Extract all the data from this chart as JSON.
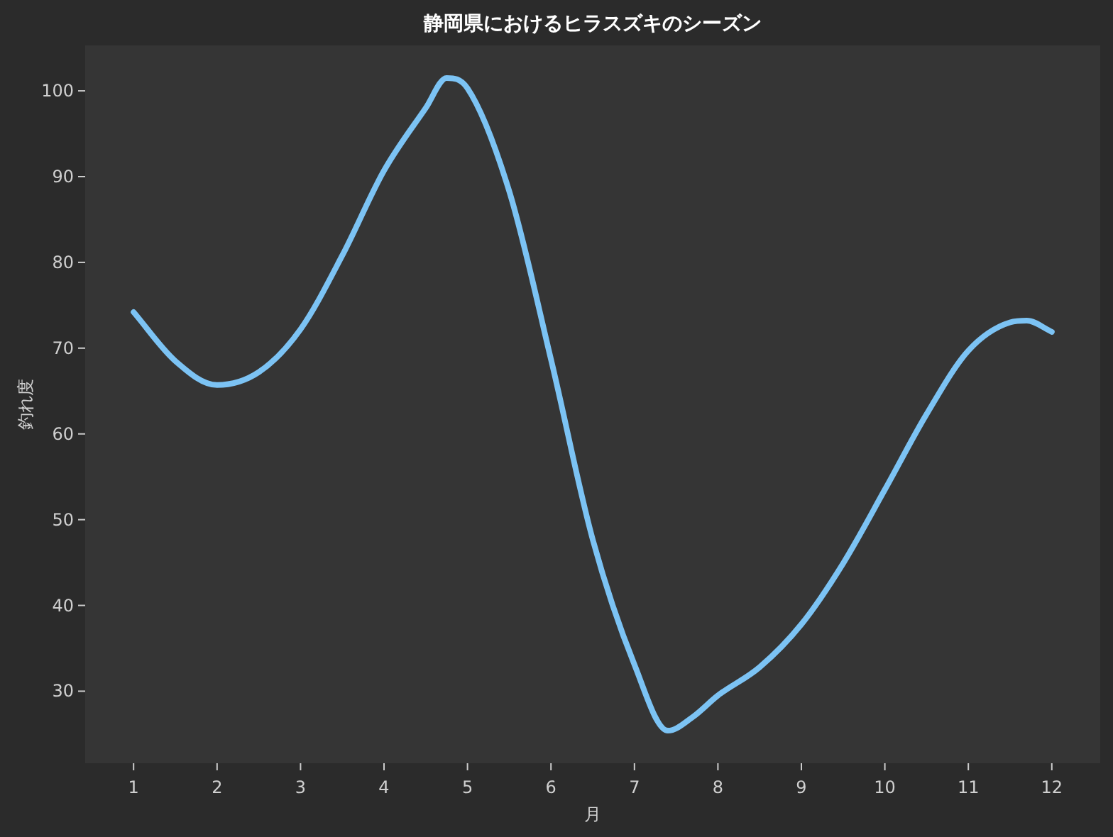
{
  "chart_data": {
    "type": "line",
    "title": "静岡県におけるヒラスズキのシーズン",
    "xlabel": "月",
    "ylabel": "釣れ度",
    "x": [
      1,
      1.5,
      2,
      2.5,
      3,
      3.5,
      4,
      4.5,
      4.75,
      5,
      5.5,
      6,
      6.5,
      7,
      7.4,
      7.7,
      8,
      8.5,
      9,
      9.5,
      10,
      10.5,
      11,
      11.5,
      11.7,
      12
    ],
    "values": [
      74.2,
      68.5,
      65.7,
      67.2,
      72.2,
      80.8,
      90.7,
      98.0,
      101.5,
      100.3,
      88.3,
      68.7,
      47.7,
      33.1,
      25.4,
      27.0,
      29.5,
      32.8,
      37.8,
      44.9,
      53.5,
      62.3,
      69.7,
      73.0,
      73.2,
      71.9
    ],
    "color": "#7cc3f4",
    "xlim": [
      0.42,
      12.58
    ],
    "ylim": [
      21.6,
      105.3
    ],
    "xticks": [
      1,
      2,
      3,
      4,
      5,
      6,
      7,
      8,
      9,
      10,
      11,
      12
    ],
    "yticks": [
      30,
      40,
      50,
      60,
      70,
      80,
      90,
      100
    ]
  }
}
